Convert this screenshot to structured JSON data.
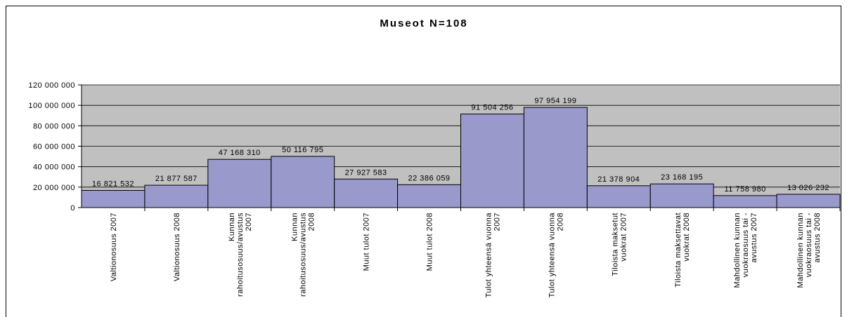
{
  "chart_data": {
    "type": "bar",
    "title": "Museot N=108",
    "categories": [
      "Valtionosuus 2007",
      "Valtionosuus 2008",
      "Kunnan\nrahoitusosuus/avustus\n2007",
      "Kunnan\nrahoitusosuus/avustus\n2008",
      "Muut tulot 2007",
      "Muut tulot 2008",
      "Tulot yhteensä vuonna\n2007",
      "Tulot yhteensä vuonna\n2008",
      "Tiloista maksetut\nvuokrat 2007",
      "Tiloista maksettavat\nvuokrat 2008",
      "Mahdollinen kunnan\nvuokraosuus tai -\navustus 2007",
      "Mahdollinen kunnan\nvuokraosuus tai -\navustus 2008"
    ],
    "values": [
      16821532,
      21877587,
      47168310,
      50116795,
      27927583,
      22386059,
      91504256,
      97954199,
      21378904,
      23168195,
      11758980,
      13026232
    ],
    "value_labels": [
      "16 821 532",
      "21 877 587",
      "47 168 310",
      "50 116 795",
      "27 927 583",
      "22 386 059",
      "91 504 256",
      "97 954 199",
      "21 378 904",
      "23 168 195",
      "11 758 980",
      "13 026 232"
    ],
    "color": "#9999cc",
    "ylim": [
      0,
      120000000
    ],
    "yticks": [
      0,
      {
        "value": 20000000,
        "label": "20 000 000"
      },
      {
        "value": 40000000,
        "label": "40 000 000"
      },
      {
        "value": 60000000,
        "label": "60 000 000"
      },
      {
        "value": 80000000,
        "label": "80 000 000"
      },
      {
        "value": 100000000,
        "label": "100 000 000"
      },
      {
        "value": 120000000,
        "label": "120 000 000"
      }
    ],
    "grid": true
  }
}
